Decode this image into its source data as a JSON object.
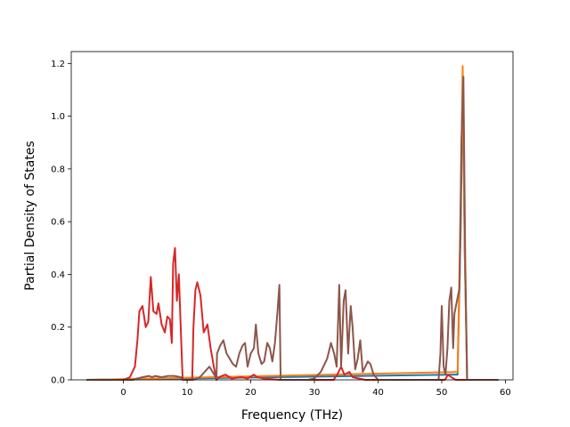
{
  "chart_data": {
    "type": "line",
    "title": "",
    "xlabel": "Frequency (THz)",
    "ylabel": "Partial Density of States",
    "xlim": [
      -8.2,
      61.2
    ],
    "ylim": [
      0,
      1.245
    ],
    "xticks": [
      0,
      10,
      20,
      30,
      40,
      50,
      60
    ],
    "yticks": [
      0.0,
      0.2,
      0.4,
      0.6,
      0.8,
      1.0,
      1.2
    ],
    "xtick_labels": [
      "0",
      "10",
      "20",
      "30",
      "40",
      "50",
      "60"
    ],
    "ytick_labels": [
      "0.0",
      "0.2",
      "0.4",
      "0.6",
      "0.8",
      "1.0",
      "1.2"
    ],
    "grid": false,
    "legend": "none",
    "series": [
      {
        "color": "#1f77b4",
        "points": [
          [
            -5.8,
            0
          ],
          [
            52.5,
            0.02
          ],
          [
            53.0,
            0.6
          ],
          [
            53.3,
            1.16
          ],
          [
            53.6,
            0.5
          ],
          [
            54.0,
            0
          ],
          [
            58.9,
            0
          ]
        ]
      },
      {
        "color": "#ff7f0e",
        "points": [
          [
            -5.8,
            0
          ],
          [
            52.5,
            0.03
          ],
          [
            53.0,
            0.7
          ],
          [
            53.3,
            1.19
          ],
          [
            53.6,
            0.5
          ],
          [
            54.0,
            0
          ],
          [
            58.9,
            0
          ]
        ]
      },
      {
        "color": "#d62728",
        "points": [
          [
            -5.8,
            0
          ],
          [
            0,
            0
          ],
          [
            1.0,
            0.01
          ],
          [
            1.8,
            0.05
          ],
          [
            2.2,
            0.15
          ],
          [
            2.5,
            0.26
          ],
          [
            3.0,
            0.28
          ],
          [
            3.5,
            0.2
          ],
          [
            3.9,
            0.22
          ],
          [
            4.3,
            0.39
          ],
          [
            4.7,
            0.26
          ],
          [
            5.2,
            0.25
          ],
          [
            5.5,
            0.29
          ],
          [
            6.0,
            0.21
          ],
          [
            6.5,
            0.18
          ],
          [
            6.9,
            0.24
          ],
          [
            7.3,
            0.23
          ],
          [
            7.6,
            0.14
          ],
          [
            7.8,
            0.44
          ],
          [
            8.1,
            0.5
          ],
          [
            8.4,
            0.3
          ],
          [
            8.7,
            0.4
          ],
          [
            9.0,
            0.2
          ],
          [
            9.3,
            0
          ],
          [
            10.8,
            0
          ],
          [
            11.0,
            0.2
          ],
          [
            11.3,
            0.34
          ],
          [
            11.6,
            0.37
          ],
          [
            12.1,
            0.32
          ],
          [
            12.6,
            0.18
          ],
          [
            13.2,
            0.21
          ],
          [
            13.7,
            0.12
          ],
          [
            14.2,
            0.05
          ],
          [
            14.6,
            0
          ],
          [
            15.0,
            0.01
          ],
          [
            16.0,
            0.02
          ],
          [
            17.0,
            0.005
          ],
          [
            18.5,
            0.01
          ],
          [
            19.5,
            0.005
          ],
          [
            20.5,
            0.02
          ],
          [
            21.0,
            0.01
          ],
          [
            22.0,
            0.005
          ],
          [
            24.6,
            0
          ],
          [
            33.0,
            0
          ],
          [
            33.6,
            0.02
          ],
          [
            34.2,
            0.05
          ],
          [
            34.7,
            0.02
          ],
          [
            35.5,
            0.03
          ],
          [
            36.0,
            0.01
          ],
          [
            38.0,
            0
          ],
          [
            50.5,
            0
          ],
          [
            51.0,
            0.02
          ],
          [
            51.5,
            0.01
          ],
          [
            52.2,
            0
          ],
          [
            58.9,
            0
          ]
        ]
      },
      {
        "color": "#8c564b",
        "points": [
          [
            -5.8,
            0
          ],
          [
            1.5,
            0
          ],
          [
            2.2,
            0.005
          ],
          [
            3.0,
            0.01
          ],
          [
            4.0,
            0.015
          ],
          [
            4.5,
            0.01
          ],
          [
            5.0,
            0.015
          ],
          [
            6.0,
            0.01
          ],
          [
            7.0,
            0.015
          ],
          [
            8.0,
            0.015
          ],
          [
            9.0,
            0.01
          ],
          [
            9.3,
            0
          ],
          [
            11.0,
            0
          ],
          [
            12.0,
            0.01
          ],
          [
            13.5,
            0.05
          ],
          [
            14.0,
            0.03
          ],
          [
            14.5,
            0.01
          ],
          [
            14.6,
            0
          ],
          [
            14.7,
            0.1
          ],
          [
            15.2,
            0.13
          ],
          [
            15.7,
            0.15
          ],
          [
            16.2,
            0.1
          ],
          [
            16.7,
            0.08
          ],
          [
            17.2,
            0.06
          ],
          [
            17.7,
            0.05
          ],
          [
            18.2,
            0.1
          ],
          [
            18.7,
            0.13
          ],
          [
            19.1,
            0.14
          ],
          [
            19.5,
            0.05
          ],
          [
            20.0,
            0.1
          ],
          [
            20.5,
            0.12
          ],
          [
            20.8,
            0.21
          ],
          [
            21.2,
            0.1
          ],
          [
            21.7,
            0.06
          ],
          [
            22.1,
            0.07
          ],
          [
            22.6,
            0.14
          ],
          [
            23.0,
            0.12
          ],
          [
            23.4,
            0.07
          ],
          [
            23.8,
            0.14
          ],
          [
            24.2,
            0.26
          ],
          [
            24.5,
            0.36
          ],
          [
            24.7,
            0
          ],
          [
            29.0,
            0
          ],
          [
            30.0,
            0.005
          ],
          [
            31.0,
            0.03
          ],
          [
            32.0,
            0.08
          ],
          [
            32.6,
            0.14
          ],
          [
            33.1,
            0.1
          ],
          [
            33.5,
            0.05
          ],
          [
            33.9,
            0.36
          ],
          [
            34.2,
            0.05
          ],
          [
            34.6,
            0.3
          ],
          [
            34.9,
            0.34
          ],
          [
            35.3,
            0.1
          ],
          [
            35.7,
            0.28
          ],
          [
            36.0,
            0.2
          ],
          [
            36.4,
            0.04
          ],
          [
            36.8,
            0.08
          ],
          [
            37.2,
            0.15
          ],
          [
            37.6,
            0.03
          ],
          [
            38.0,
            0.05
          ],
          [
            38.4,
            0.07
          ],
          [
            38.8,
            0.06
          ],
          [
            39.3,
            0.02
          ],
          [
            40.0,
            0
          ],
          [
            49.5,
            0
          ],
          [
            49.8,
            0.1
          ],
          [
            50.0,
            0.28
          ],
          [
            50.3,
            0.05
          ],
          [
            50.6,
            0.02
          ],
          [
            50.9,
            0.12
          ],
          [
            51.2,
            0.3
          ],
          [
            51.5,
            0.35
          ],
          [
            51.8,
            0.12
          ],
          [
            52.0,
            0.25
          ],
          [
            52.4,
            0.3
          ],
          [
            52.8,
            0.35
          ],
          [
            53.1,
            0.9
          ],
          [
            53.4,
            1.15
          ],
          [
            53.7,
            0.45
          ],
          [
            54.0,
            0
          ],
          [
            58.9,
            0
          ]
        ]
      }
    ]
  }
}
